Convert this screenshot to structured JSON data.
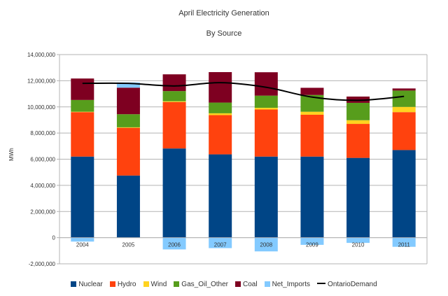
{
  "chart_data": {
    "type": "bar",
    "stacked": true,
    "title": "April Electricity Generation",
    "subtitle": "By Source",
    "ylabel": "MWh",
    "xlabel": "",
    "categories": [
      "2004",
      "2005",
      "2006",
      "2007",
      "2008",
      "2009",
      "2010",
      "2011"
    ],
    "ylim": [
      -2000000,
      14000000
    ],
    "yticks": [
      -2000000,
      0,
      2000000,
      4000000,
      6000000,
      8000000,
      10000000,
      12000000,
      14000000
    ],
    "ytick_labels": [
      "-2,000,000",
      "0",
      "2,000,000",
      "4,000,000",
      "6,000,000",
      "8,000,000",
      "10,000,000",
      "12,000,000",
      "14,000,000"
    ],
    "grid": true,
    "legend_position": "bottom",
    "series": [
      {
        "name": "Nuclear",
        "color": "#004586",
        "values": [
          6200000,
          4750000,
          6820000,
          6370000,
          6200000,
          6200000,
          6100000,
          6700000
        ]
      },
      {
        "name": "Hydro",
        "color": "#ff420e",
        "values": [
          3400000,
          3650000,
          3550000,
          3000000,
          3600000,
          3200000,
          2600000,
          2900000
        ]
      },
      {
        "name": "Wind",
        "color": "#ffd320",
        "values": [
          30000,
          40000,
          60000,
          140000,
          130000,
          230000,
          280000,
          400000
        ]
      },
      {
        "name": "Gas_Oil_Other",
        "color": "#579d1c",
        "values": [
          900000,
          1000000,
          780000,
          820000,
          930000,
          1280000,
          1330000,
          1250000
        ]
      },
      {
        "name": "Coal",
        "color": "#7e0021",
        "values": [
          1640000,
          2030000,
          1280000,
          2330000,
          1790000,
          550000,
          480000,
          160000
        ]
      },
      {
        "name": "Net_Imports",
        "color": "#83caff",
        "values": [
          -300000,
          400000,
          -900000,
          -800000,
          -1050000,
          -550000,
          -400000,
          -700000
        ]
      }
    ],
    "line_series": [
      {
        "name": "OntarioDemand",
        "color": "#000000",
        "values": [
          11800000,
          11800000,
          11600000,
          11850000,
          11500000,
          10750000,
          10500000,
          10800000
        ]
      }
    ]
  }
}
